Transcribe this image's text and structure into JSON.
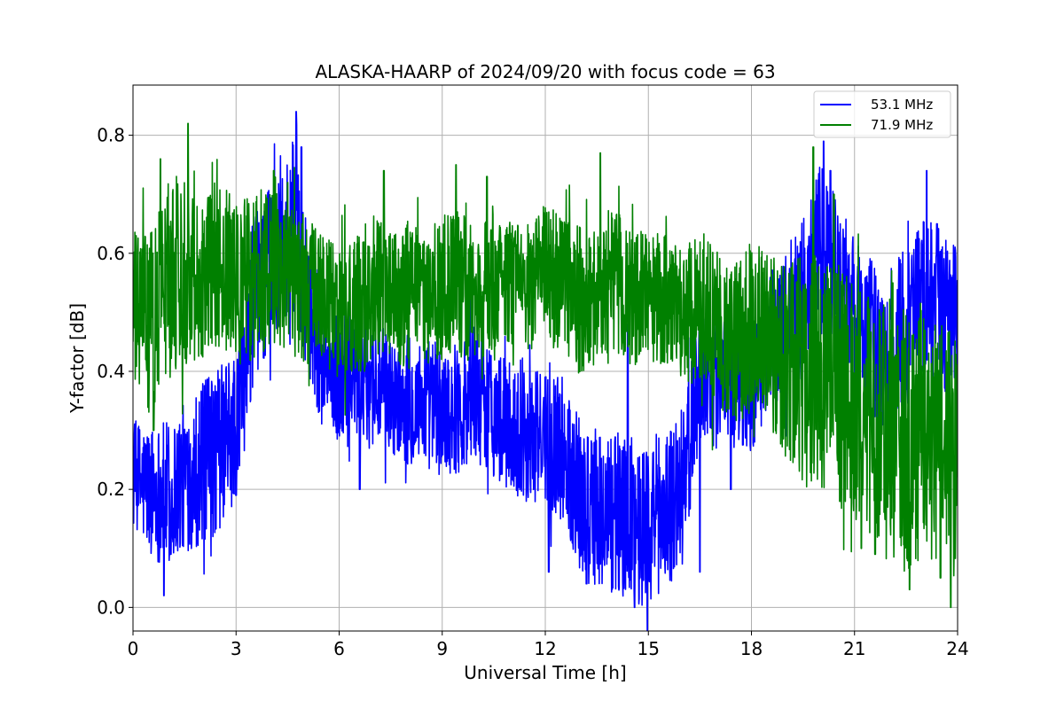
{
  "chart_data": {
    "type": "line",
    "title": "ALASKA-HAARP of 2024/09/20 with focus code = 63",
    "xlabel": "Universal Time [h]",
    "ylabel": "Y-factor [dB]",
    "xlim": [
      0,
      24
    ],
    "ylim": [
      -0.04,
      0.885
    ],
    "xticks": [
      0,
      3,
      6,
      9,
      12,
      15,
      18,
      21,
      24
    ],
    "yticks": [
      0.0,
      0.2,
      0.4,
      0.6,
      0.8
    ],
    "xtick_labels": [
      "0",
      "3",
      "6",
      "9",
      "12",
      "15",
      "18",
      "21",
      "24"
    ],
    "ytick_labels": [
      "0.0",
      "0.2",
      "0.4",
      "0.6",
      "0.8"
    ],
    "grid": true,
    "legend_position": "upper-right",
    "legend": [
      "53.1 MHz",
      "71.9 MHz"
    ],
    "series": [
      {
        "name": "53.1 MHz",
        "color": "#0000ff",
        "x": [
          0,
          0.5,
          1,
          1.5,
          2,
          2.5,
          3,
          3.5,
          4,
          4.5,
          4.8,
          5,
          5.5,
          6,
          6.5,
          7,
          7.5,
          8,
          8.5,
          9,
          9.5,
          10,
          10.5,
          11,
          11.5,
          12,
          12.5,
          13,
          13.5,
          14,
          14.5,
          15,
          15.5,
          16,
          16.5,
          17,
          17.5,
          18,
          18.5,
          19,
          19.5,
          20,
          20.5,
          21,
          21.5,
          22,
          22.5,
          23,
          23.5,
          24
        ],
        "mean": [
          0.22,
          0.2,
          0.19,
          0.22,
          0.24,
          0.27,
          0.3,
          0.52,
          0.58,
          0.62,
          0.66,
          0.55,
          0.42,
          0.38,
          0.4,
          0.38,
          0.36,
          0.34,
          0.35,
          0.33,
          0.34,
          0.37,
          0.33,
          0.3,
          0.29,
          0.29,
          0.27,
          0.2,
          0.16,
          0.16,
          0.15,
          0.14,
          0.17,
          0.2,
          0.4,
          0.38,
          0.4,
          0.37,
          0.45,
          0.48,
          0.52,
          0.6,
          0.55,
          0.5,
          0.45,
          0.43,
          0.47,
          0.53,
          0.5,
          0.48
        ],
        "amplitude": [
          0.07,
          0.08,
          0.09,
          0.09,
          0.1,
          0.1,
          0.1,
          0.1,
          0.1,
          0.1,
          0.12,
          0.1,
          0.08,
          0.08,
          0.09,
          0.08,
          0.07,
          0.07,
          0.08,
          0.08,
          0.08,
          0.09,
          0.08,
          0.08,
          0.08,
          0.08,
          0.09,
          0.1,
          0.1,
          0.1,
          0.1,
          0.1,
          0.1,
          0.1,
          0.08,
          0.08,
          0.08,
          0.08,
          0.08,
          0.09,
          0.1,
          0.11,
          0.1,
          0.1,
          0.1,
          0.1,
          0.1,
          0.1,
          0.1,
          0.1
        ],
        "peaks": [
          [
            0.9,
            0.02
          ],
          [
            1.1,
            0.09
          ],
          [
            3.0,
            0.19
          ],
          [
            4.6,
            0.72
          ],
          [
            4.75,
            0.84
          ],
          [
            4.9,
            0.78
          ],
          [
            6.6,
            0.2
          ],
          [
            12.1,
            0.06
          ],
          [
            13.2,
            0.04
          ],
          [
            14.6,
            0.0
          ],
          [
            16.5,
            0.06
          ],
          [
            17.4,
            0.2
          ],
          [
            20.1,
            0.79
          ],
          [
            20.3,
            0.74
          ],
          [
            23.1,
            0.74
          ],
          [
            23.4,
            0.65
          ],
          [
            14.4,
            0.48
          ]
        ]
      },
      {
        "name": "71.9 MHz",
        "color": "#008000",
        "x": [
          0,
          0.5,
          1,
          1.5,
          2,
          2.5,
          3,
          3.5,
          4,
          4.5,
          5,
          5.5,
          6,
          6.5,
          7,
          7.5,
          8,
          8.5,
          9,
          9.5,
          10,
          10.5,
          11,
          11.5,
          12,
          12.5,
          13,
          13.5,
          14,
          14.5,
          15,
          15.5,
          16,
          16.5,
          17,
          17.5,
          18,
          18.5,
          19,
          19.5,
          20,
          20.5,
          21,
          21.5,
          22,
          22.5,
          23,
          23.5,
          24
        ],
        "mean": [
          0.5,
          0.48,
          0.55,
          0.58,
          0.56,
          0.58,
          0.55,
          0.56,
          0.58,
          0.57,
          0.54,
          0.52,
          0.5,
          0.5,
          0.55,
          0.52,
          0.53,
          0.52,
          0.54,
          0.55,
          0.52,
          0.56,
          0.55,
          0.54,
          0.56,
          0.55,
          0.52,
          0.54,
          0.56,
          0.52,
          0.53,
          0.52,
          0.5,
          0.5,
          0.48,
          0.45,
          0.47,
          0.45,
          0.42,
          0.4,
          0.4,
          0.38,
          0.35,
          0.32,
          0.3,
          0.28,
          0.3,
          0.27,
          0.26
        ],
        "amplitude": [
          0.1,
          0.11,
          0.12,
          0.12,
          0.1,
          0.1,
          0.1,
          0.1,
          0.1,
          0.1,
          0.09,
          0.08,
          0.08,
          0.09,
          0.09,
          0.08,
          0.09,
          0.08,
          0.09,
          0.09,
          0.08,
          0.09,
          0.08,
          0.08,
          0.09,
          0.08,
          0.09,
          0.09,
          0.09,
          0.08,
          0.08,
          0.08,
          0.08,
          0.1,
          0.1,
          0.1,
          0.1,
          0.11,
          0.12,
          0.14,
          0.14,
          0.15,
          0.15,
          0.15,
          0.16,
          0.16,
          0.16,
          0.15,
          0.15
        ],
        "peaks": [
          [
            1.6,
            0.82
          ],
          [
            0.8,
            0.76
          ],
          [
            4.1,
            0.74
          ],
          [
            4.5,
            0.72
          ],
          [
            7.3,
            0.74
          ],
          [
            9.4,
            0.75
          ],
          [
            10.3,
            0.73
          ],
          [
            13.6,
            0.77
          ],
          [
            0.6,
            0.3
          ],
          [
            19.8,
            0.78
          ],
          [
            20.4,
            0.7
          ],
          [
            22.6,
            0.03
          ],
          [
            23.8,
            0.0
          ],
          [
            23.5,
            0.05
          ],
          [
            21.2,
            0.1
          ],
          [
            21.6,
            0.09
          ]
        ]
      }
    ]
  }
}
